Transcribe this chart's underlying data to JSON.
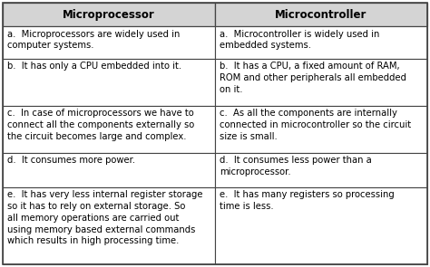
{
  "col1_header": "Microprocessor",
  "col2_header": "Microcontroller",
  "rows": [
    [
      "a.  Microprocessors are widely used in\ncomputer systems.",
      "a.  Microcontroller is widely used in\nembedded systems."
    ],
    [
      "b.  It has only a CPU embedded into it.",
      "b.  It has a CPU, a fixed amount of RAM,\nROM and other peripherals all embedded\non it."
    ],
    [
      "c.  In case of microprocessors we have to\nconnect all the components externally so\nthe circuit becomes large and complex.",
      "c.  As all the components are internally\nconnected in microcontroller so the circuit\nsize is small."
    ],
    [
      "d.  It consumes more power.",
      "d.  It consumes less power than a\nmicroprocessor."
    ],
    [
      "e.  It has very less internal register storage\nso it has to rely on external storage. So\nall memory operations are carried out\nusing memory based external commands\nwhich results in high processing time.",
      "e.  It has many registers so processing\ntime is less."
    ]
  ],
  "header_bg": "#d4d4d4",
  "cell_bg": "#ffffff",
  "border_color": "#444444",
  "header_font_size": 8.5,
  "cell_font_size": 7.2,
  "header_text_color": "#000000",
  "cell_text_color": "#000000",
  "fig_width": 4.74,
  "fig_height": 2.95,
  "dpi": 100
}
